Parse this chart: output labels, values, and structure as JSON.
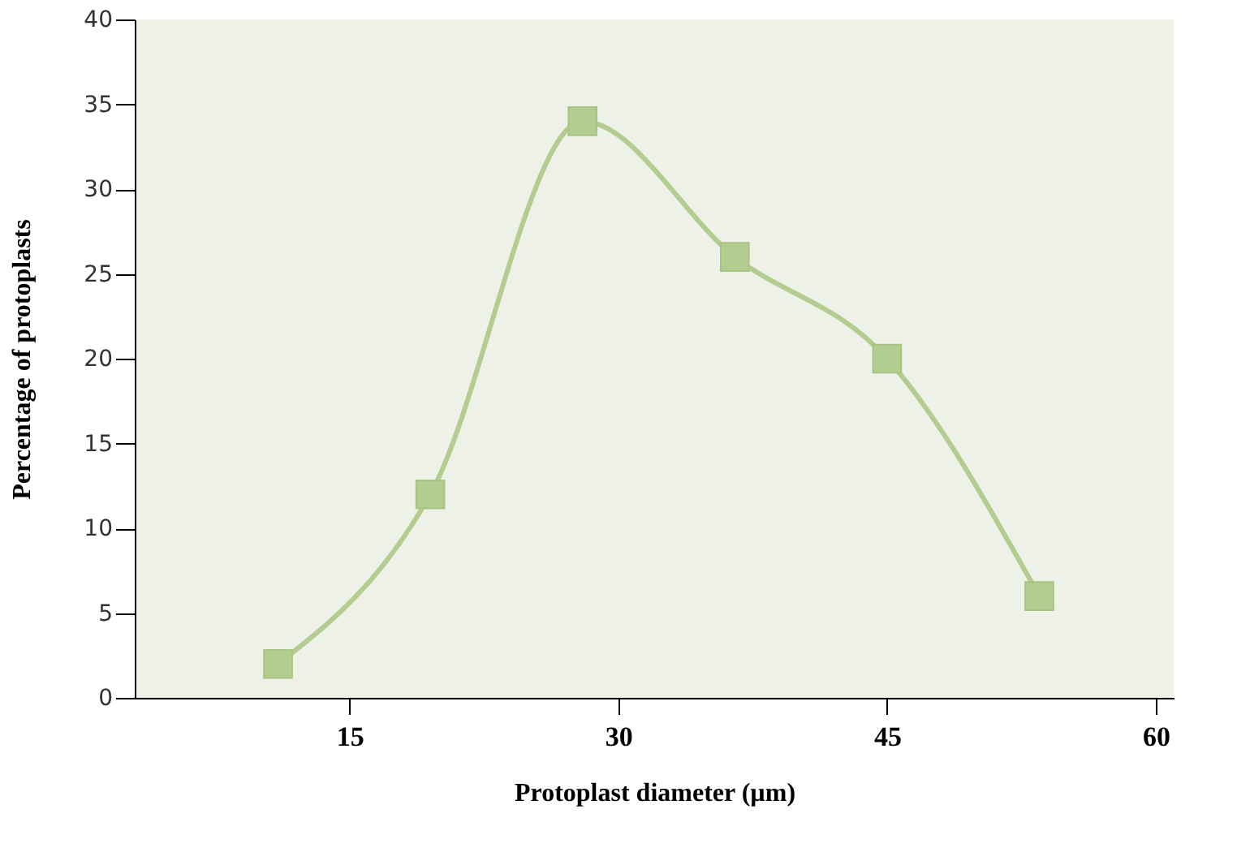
{
  "chart_data": {
    "type": "line",
    "xlabel": "Protoplast diameter (µm)",
    "ylabel": "Percentage of protoplasts",
    "x": [
      11,
      19.5,
      28,
      36.5,
      45,
      53.5
    ],
    "values": [
      2,
      12,
      34,
      26,
      20,
      6
    ],
    "color": "#b3cc8f",
    "marker": "square",
    "grid": false,
    "xlim": [
      3,
      61
    ],
    "xticks": [
      15,
      30,
      45,
      60
    ],
    "ylim": [
      0,
      40
    ],
    "yticks": [
      0,
      5,
      10,
      15,
      20,
      25,
      30,
      35,
      40
    ]
  }
}
